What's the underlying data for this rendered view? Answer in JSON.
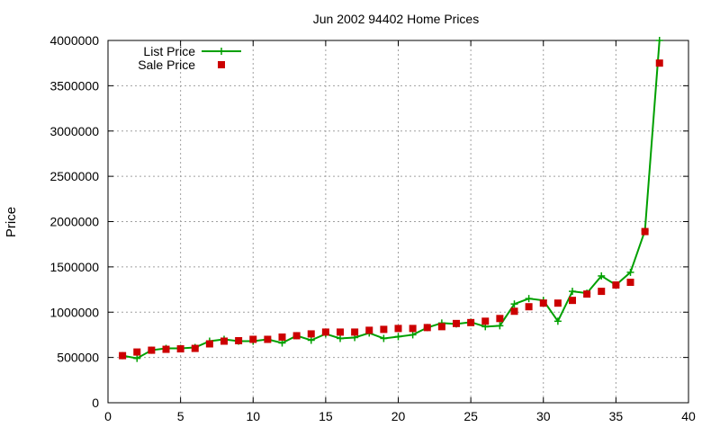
{
  "chart_data": {
    "type": "line",
    "title": "Jun 2002 94402 Home Prices",
    "xlabel": "",
    "ylabel": "Price",
    "xlim": [
      0,
      40
    ],
    "ylim": [
      0,
      4000000
    ],
    "x_ticks": [
      0,
      5,
      10,
      15,
      20,
      25,
      30,
      35,
      40
    ],
    "y_ticks": [
      0,
      500000,
      1000000,
      1500000,
      2000000,
      2500000,
      3000000,
      3500000,
      4000000
    ],
    "grid": true,
    "legend_position": "top-left",
    "series": [
      {
        "name": "List Price",
        "style": "line-with-plus-markers",
        "color": "#00a000",
        "x": [
          1,
          2,
          3,
          4,
          5,
          6,
          7,
          8,
          9,
          10,
          11,
          12,
          13,
          14,
          15,
          16,
          17,
          18,
          19,
          20,
          21,
          22,
          23,
          24,
          25,
          26,
          27,
          28,
          29,
          30,
          31,
          32,
          33,
          34,
          35,
          36,
          37,
          38
        ],
        "y": [
          520000,
          490000,
          580000,
          600000,
          600000,
          610000,
          680000,
          700000,
          680000,
          680000,
          700000,
          660000,
          740000,
          690000,
          760000,
          710000,
          720000,
          770000,
          710000,
          730000,
          750000,
          830000,
          880000,
          870000,
          890000,
          840000,
          850000,
          1090000,
          1150000,
          1130000,
          900000,
          1230000,
          1210000,
          1400000,
          1300000,
          1440000,
          1900000,
          4000000
        ]
      },
      {
        "name": "Sale Price",
        "style": "square-markers",
        "color": "#cc0000",
        "x": [
          1,
          2,
          3,
          4,
          5,
          6,
          7,
          8,
          9,
          10,
          11,
          12,
          13,
          14,
          15,
          16,
          17,
          18,
          19,
          20,
          21,
          22,
          23,
          24,
          25,
          26,
          27,
          28,
          29,
          30,
          31,
          32,
          33,
          34,
          35,
          36,
          37,
          38
        ],
        "y": [
          520000,
          560000,
          580000,
          590000,
          595000,
          600000,
          650000,
          680000,
          685000,
          700000,
          700000,
          725000,
          740000,
          760000,
          780000,
          780000,
          780000,
          800000,
          810000,
          820000,
          820000,
          830000,
          840000,
          875000,
          885000,
          900000,
          930000,
          1010000,
          1060000,
          1100000,
          1100000,
          1130000,
          1200000,
          1230000,
          1300000,
          1330000,
          1890000,
          3750000
        ]
      }
    ]
  }
}
